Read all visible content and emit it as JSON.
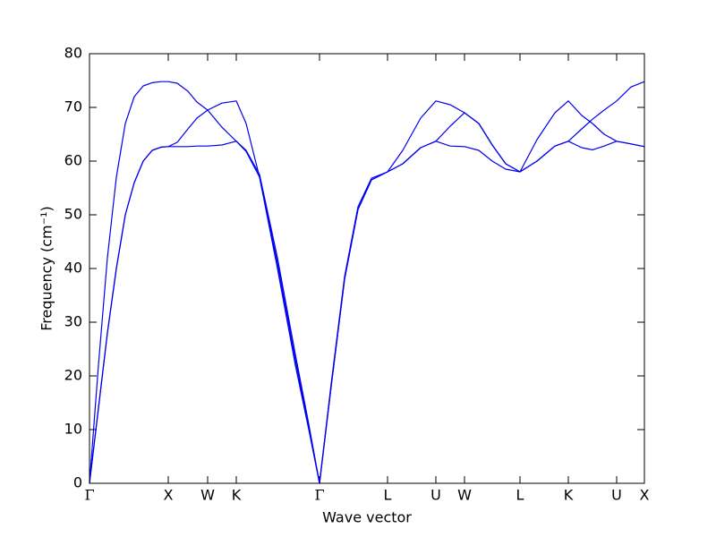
{
  "chart_data": {
    "type": "line",
    "xlabel": "Wave vector",
    "ylabel": "Frequency (cm⁻¹)",
    "x": [
      0,
      0.1,
      0.2,
      0.3,
      0.4,
      0.5,
      0.6,
      0.7,
      0.8,
      0.88,
      0.98,
      1.1,
      1.2,
      1.32,
      1.48,
      1.64,
      1.75,
      1.9,
      2.1,
      2.3,
      2.45,
      2.57,
      2.7,
      2.85,
      3.0,
      3.15,
      3.33,
      3.5,
      3.7,
      3.87,
      4.03,
      4.19,
      4.35,
      4.5,
      4.65,
      4.81,
      5.0,
      5.2,
      5.35,
      5.5,
      5.62,
      5.75,
      5.89,
      6.05,
      6.2
    ],
    "series": [
      {
        "color": "#0000ee",
        "values": [
          0,
          14,
          28,
          40,
          50,
          56,
          60,
          62,
          62.6,
          62.7,
          62.7,
          62.7,
          62.8,
          62.8,
          63,
          63.7,
          62,
          57.5,
          42,
          24,
          11,
          0,
          18,
          38,
          51,
          56.5,
          58,
          59.5,
          62.5,
          63.7,
          62.8,
          62.7,
          62,
          60,
          58.5,
          58,
          60,
          62.8,
          63.7,
          62.5,
          62.1,
          62.8,
          63.7,
          63.2,
          62.7
        ]
      },
      {
        "color": "#0000ee",
        "values": [
          0,
          14,
          28,
          40,
          50,
          56,
          60,
          62,
          62.6,
          62.7,
          63.5,
          66,
          68,
          69.5,
          70.8,
          71.2,
          67,
          57,
          40,
          22,
          10,
          0,
          18.5,
          38.5,
          51.5,
          56.8,
          58,
          62,
          68,
          71.2,
          70.5,
          69,
          67,
          63,
          59.5,
          58,
          60,
          62.8,
          63.7,
          66,
          67.8,
          69.5,
          71.2,
          73.8,
          74.8
        ]
      },
      {
        "color": "#0000ee",
        "values": [
          0,
          22,
          42,
          57,
          67,
          72,
          74,
          74.6,
          74.8,
          74.8,
          74.5,
          73,
          71,
          69.5,
          66.3,
          63.7,
          61.8,
          57,
          41,
          23,
          10.5,
          0,
          18,
          38,
          51,
          56.5,
          58,
          59.5,
          62.5,
          63.7,
          66.5,
          69,
          67,
          63,
          59.5,
          58,
          64,
          69,
          71.2,
          68.5,
          67,
          65,
          63.7,
          63.2,
          62.7
        ]
      }
    ],
    "xlim": [
      0,
      6.2
    ],
    "xticks": [
      {
        "value": 0,
        "label": "Γ"
      },
      {
        "value": 0.88,
        "label": "X"
      },
      {
        "value": 1.32,
        "label": "W"
      },
      {
        "value": 1.64,
        "label": "K"
      },
      {
        "value": 2.57,
        "label": "Γ"
      },
      {
        "value": 3.33,
        "label": "L"
      },
      {
        "value": 3.87,
        "label": "U"
      },
      {
        "value": 4.19,
        "label": "W"
      },
      {
        "value": 4.81,
        "label": "L"
      },
      {
        "value": 5.35,
        "label": "K"
      },
      {
        "value": 5.89,
        "label": "U"
      },
      {
        "value": 6.2,
        "label": "X"
      }
    ],
    "ylim": [
      0,
      80
    ],
    "yticks": [
      0,
      10,
      20,
      30,
      40,
      50,
      60,
      70,
      80
    ],
    "grid": false
  }
}
